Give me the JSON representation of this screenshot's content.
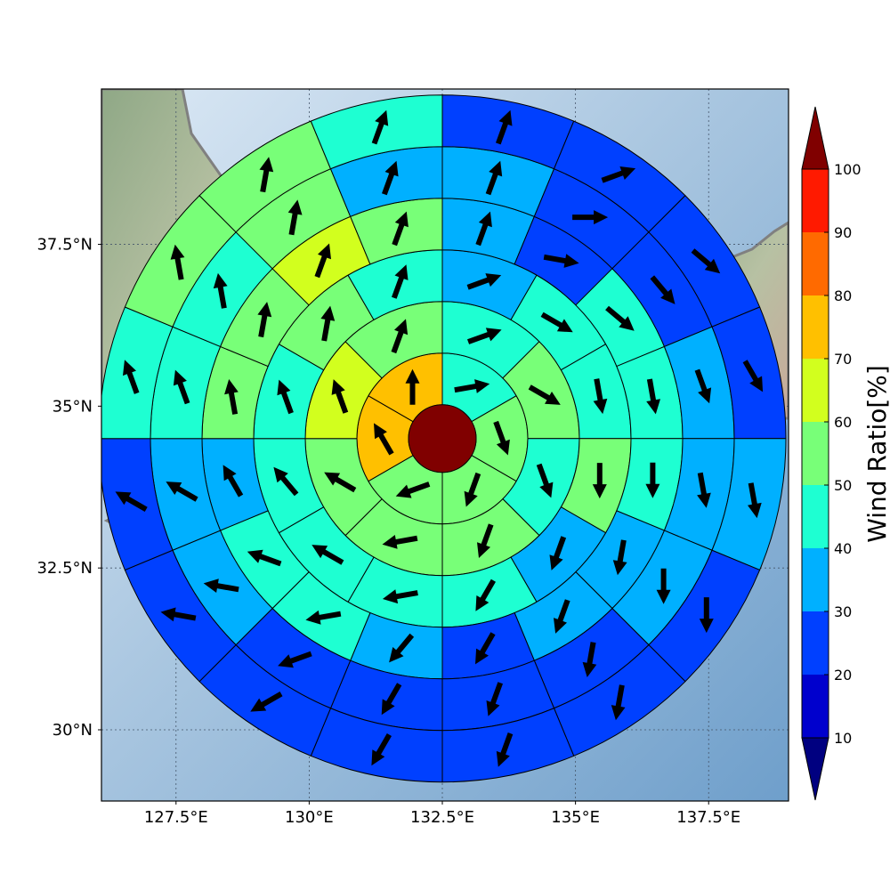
{
  "chart_data": {
    "type": "heatmap",
    "subtype": "polar-sector-wind-ratio-map",
    "title": "",
    "center": {
      "lon": 132.5,
      "lat": 34.5
    },
    "x_axis": {
      "ticks": [
        127.5,
        130,
        132.5,
        135,
        137.5
      ],
      "tick_labels": [
        "127.5°E",
        "130°E",
        "132.5°E",
        "135°E",
        "137.5°E"
      ],
      "range": [
        126.1,
        139.0
      ]
    },
    "y_axis": {
      "ticks": [
        30,
        32.5,
        35,
        37.5
      ],
      "tick_labels": [
        "30°N",
        "32.5°N",
        "35°N",
        "37.5°N"
      ],
      "range": [
        28.9,
        39.9
      ]
    },
    "grid": true,
    "colorbar": {
      "label": "Wind Ratio[%]",
      "levels": [
        10,
        20,
        30,
        40,
        50,
        60,
        70,
        80,
        90,
        100
      ],
      "tick_labels": [
        "10",
        "20",
        "30",
        "40",
        "50",
        "60",
        "70",
        "80",
        "90",
        "100"
      ],
      "colors": [
        "#0000cd",
        "#0040ff",
        "#00b0ff",
        "#1effd2",
        "#78ff78",
        "#d2ff1e",
        "#ffc000",
        "#ff6a00",
        "#ff1a00"
      ],
      "under_color": "#000080",
      "over_color": "#800000",
      "extend": "both",
      "placement": "right"
    },
    "center_cell": {
      "value": 100
    },
    "rings": [
      {
        "ring": 1,
        "sectors": 6,
        "values": [
          45,
          55,
          55,
          55,
          75,
          75
        ],
        "wind_dir_deg": [
          80,
          160,
          200,
          250,
          330,
          0
        ]
      },
      {
        "ring": 2,
        "sectors": 8,
        "values": [
          45,
          50,
          45,
          55,
          55,
          55,
          65,
          55
        ],
        "wind_dir_deg": [
          70,
          120,
          160,
          200,
          260,
          300,
          340,
          20
        ]
      },
      {
        "ring": 3,
        "sectors": 12,
        "values": [
          35,
          45,
          45,
          55,
          35,
          45,
          45,
          45,
          45,
          45,
          55,
          45
        ],
        "wind_dir_deg": [
          70,
          120,
          170,
          180,
          200,
          210,
          260,
          300,
          320,
          340,
          10,
          20
        ]
      },
      {
        "ring": 4,
        "sectors": 16,
        "values": [
          35,
          25,
          45,
          45,
          45,
          35,
          35,
          25,
          35,
          45,
          45,
          35,
          55,
          55,
          65,
          55
        ],
        "wind_dir_deg": [
          20,
          100,
          130,
          170,
          180,
          190,
          200,
          210,
          220,
          260,
          290,
          330,
          350,
          10,
          20,
          20
        ]
      },
      {
        "ring": 5,
        "sectors": 16,
        "values": [
          35,
          25,
          25,
          35,
          35,
          35,
          25,
          25,
          25,
          25,
          35,
          35,
          45,
          45,
          55,
          35
        ],
        "wind_dir_deg": [
          20,
          90,
          140,
          160,
          170,
          180,
          190,
          200,
          210,
          250,
          280,
          300,
          340,
          350,
          10,
          20
        ]
      },
      {
        "ring": 6,
        "sectors": 16,
        "values": [
          25,
          25,
          25,
          25,
          35,
          25,
          25,
          25,
          25,
          25,
          25,
          25,
          45,
          55,
          55,
          45
        ],
        "wind_dir_deg": [
          20,
          70,
          130,
          150,
          170,
          180,
          190,
          200,
          210,
          240,
          280,
          300,
          340,
          350,
          10,
          20
        ]
      }
    ]
  }
}
